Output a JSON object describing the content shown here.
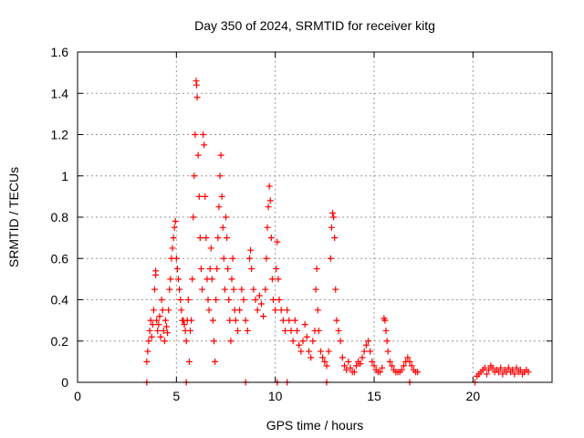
{
  "chart_data": {
    "type": "scatter",
    "title": "Day 350 of 2024, SRMTID for receiver kitg",
    "xlabel": "GPS time / hours",
    "ylabel": "SRMTID / TECUs",
    "xlim": [
      0,
      24
    ],
    "ylim": [
      0,
      1.6
    ],
    "grid": true,
    "marker": "+",
    "color": "#ff0000",
    "x_ticks": [
      0,
      5,
      10,
      15,
      20
    ],
    "x_tick_labels": [
      "0",
      "5",
      "10",
      "15",
      "20"
    ],
    "y_ticks": [
      0,
      0.2,
      0.4,
      0.6,
      0.8,
      1.0,
      1.2,
      1.4,
      1.6
    ],
    "y_tick_labels": [
      "0",
      "0.2",
      "0.4",
      "0.6",
      "0.8",
      "1",
      "1.2",
      "1.4",
      "1.6"
    ],
    "series": [
      {
        "name": "SRMTID",
        "points": [
          [
            3.5,
            0.1
          ],
          [
            3.55,
            0.15
          ],
          [
            3.6,
            0.2
          ],
          [
            3.65,
            0.25
          ],
          [
            3.7,
            0.3
          ],
          [
            3.75,
            0.22
          ],
          [
            3.8,
            0.28
          ],
          [
            3.85,
            0.35
          ],
          [
            3.9,
            0.45
          ],
          [
            3.95,
            0.52
          ],
          [
            3.95,
            0.54
          ],
          [
            4.0,
            0.3
          ],
          [
            4.05,
            0.25
          ],
          [
            4.1,
            0.28
          ],
          [
            4.15,
            0.32
          ],
          [
            4.2,
            0.22
          ],
          [
            4.25,
            0.4
          ],
          [
            4.3,
            0.35
          ],
          [
            4.35,
            0.25
          ],
          [
            4.4,
            0.2
          ],
          [
            4.45,
            0.3
          ],
          [
            4.5,
            0.27
          ],
          [
            4.55,
            0.24
          ],
          [
            4.6,
            0.35
          ],
          [
            4.65,
            0.45
          ],
          [
            4.7,
            0.5
          ],
          [
            4.75,
            0.6
          ],
          [
            4.8,
            0.65
          ],
          [
            4.85,
            0.7
          ],
          [
            4.9,
            0.75
          ],
          [
            4.95,
            0.78
          ],
          [
            5.0,
            0.6
          ],
          [
            5.05,
            0.55
          ],
          [
            5.1,
            0.5
          ],
          [
            5.15,
            0.45
          ],
          [
            5.2,
            0.4
          ],
          [
            5.25,
            0.35
          ],
          [
            5.3,
            0.3
          ],
          [
            5.35,
            0.3
          ],
          [
            5.4,
            0.28
          ],
          [
            5.45,
            0.25
          ],
          [
            5.5,
            0.2
          ],
          [
            5.55,
            0.3
          ],
          [
            5.6,
            0.4
          ],
          [
            5.65,
            0.1
          ],
          [
            5.7,
            0.25
          ],
          [
            5.75,
            0.3
          ],
          [
            5.8,
            0.5
          ],
          [
            5.85,
            0.8
          ],
          [
            5.9,
            1.0
          ],
          [
            5.95,
            1.2
          ],
          [
            6.0,
            1.46
          ],
          [
            6.02,
            1.44
          ],
          [
            6.05,
            1.38
          ],
          [
            6.1,
            1.1
          ],
          [
            6.15,
            0.9
          ],
          [
            6.2,
            0.7
          ],
          [
            6.25,
            0.55
          ],
          [
            6.3,
            0.45
          ],
          [
            6.35,
            1.2
          ],
          [
            6.4,
            1.15
          ],
          [
            6.45,
            0.9
          ],
          [
            6.5,
            0.7
          ],
          [
            6.55,
            0.5
          ],
          [
            6.6,
            0.4
          ],
          [
            6.65,
            0.35
          ],
          [
            6.7,
            0.55
          ],
          [
            6.75,
            0.65
          ],
          [
            6.8,
            0.5
          ],
          [
            6.85,
            0.3
          ],
          [
            6.9,
            0.2
          ],
          [
            6.95,
            0.1
          ],
          [
            7.0,
            0.4
          ],
          [
            7.05,
            0.55
          ],
          [
            7.1,
            0.7
          ],
          [
            7.15,
            0.85
          ],
          [
            7.2,
            1.0
          ],
          [
            7.25,
            1.1
          ],
          [
            7.3,
            0.9
          ],
          [
            7.35,
            0.75
          ],
          [
            7.4,
            0.6
          ],
          [
            7.45,
            0.45
          ],
          [
            7.5,
            0.8
          ],
          [
            7.55,
            0.7
          ],
          [
            7.6,
            0.55
          ],
          [
            7.65,
            0.4
          ],
          [
            7.7,
            0.3
          ],
          [
            7.75,
            0.2
          ],
          [
            7.8,
            0.5
          ],
          [
            7.85,
            0.6
          ],
          [
            7.9,
            0.45
          ],
          [
            7.95,
            0.35
          ],
          [
            8.0,
            0.3
          ],
          [
            8.1,
            0.25
          ],
          [
            8.2,
            0.35
          ],
          [
            8.3,
            0.45
          ],
          [
            8.4,
            0.4
          ],
          [
            8.5,
            0.3
          ],
          [
            8.6,
            0.25
          ],
          [
            8.7,
            0.6
          ],
          [
            8.75,
            0.64
          ],
          [
            8.8,
            0.55
          ],
          [
            8.9,
            0.45
          ],
          [
            9.0,
            0.4
          ],
          [
            9.1,
            0.35
          ],
          [
            9.2,
            0.42
          ],
          [
            9.3,
            0.38
          ],
          [
            9.4,
            0.32
          ],
          [
            9.5,
            0.45
          ],
          [
            9.55,
            0.6
          ],
          [
            9.6,
            0.75
          ],
          [
            9.65,
            0.85
          ],
          [
            9.7,
            0.95
          ],
          [
            9.75,
            0.88
          ],
          [
            9.8,
            0.7
          ],
          [
            9.85,
            0.5
          ],
          [
            9.9,
            0.4
          ],
          [
            10.0,
            0.35
          ],
          [
            10.05,
            0.55
          ],
          [
            10.1,
            0.68
          ],
          [
            10.15,
            0.5
          ],
          [
            10.2,
            0.4
          ],
          [
            10.3,
            0.35
          ],
          [
            10.4,
            0.3
          ],
          [
            10.5,
            0.25
          ],
          [
            10.6,
            0.35
          ],
          [
            10.7,
            0.3
          ],
          [
            10.8,
            0.25
          ],
          [
            10.9,
            0.2
          ],
          [
            11.0,
            0.3
          ],
          [
            11.1,
            0.25
          ],
          [
            11.2,
            0.18
          ],
          [
            11.3,
            0.15
          ],
          [
            11.4,
            0.2
          ],
          [
            11.5,
            0.28
          ],
          [
            11.6,
            0.22
          ],
          [
            11.7,
            0.15
          ],
          [
            11.8,
            0.12
          ],
          [
            11.9,
            0.2
          ],
          [
            12.0,
            0.25
          ],
          [
            12.05,
            0.45
          ],
          [
            12.1,
            0.55
          ],
          [
            12.15,
            0.35
          ],
          [
            12.2,
            0.25
          ],
          [
            12.3,
            0.15
          ],
          [
            12.4,
            0.12
          ],
          [
            12.5,
            0.1
          ],
          [
            12.6,
            0.08
          ],
          [
            12.7,
            0.15
          ],
          [
            12.8,
            0.6
          ],
          [
            12.85,
            0.75
          ],
          [
            12.9,
            0.82
          ],
          [
            12.95,
            0.8
          ],
          [
            13.0,
            0.7
          ],
          [
            13.05,
            0.45
          ],
          [
            13.1,
            0.3
          ],
          [
            13.2,
            0.25
          ],
          [
            13.3,
            0.2
          ],
          [
            13.4,
            0.12
          ],
          [
            13.5,
            0.08
          ],
          [
            13.6,
            0.06
          ],
          [
            13.7,
            0.1
          ],
          [
            13.8,
            0.07
          ],
          [
            13.9,
            0.05
          ],
          [
            14.0,
            0.05
          ],
          [
            14.1,
            0.08
          ],
          [
            14.2,
            0.1
          ],
          [
            14.3,
            0.09
          ],
          [
            14.4,
            0.12
          ],
          [
            14.5,
            0.15
          ],
          [
            14.6,
            0.18
          ],
          [
            14.7,
            0.2
          ],
          [
            14.8,
            0.15
          ],
          [
            14.9,
            0.1
          ],
          [
            15.0,
            0.08
          ],
          [
            15.1,
            0.06
          ],
          [
            15.2,
            0.05
          ],
          [
            15.3,
            0.05
          ],
          [
            15.4,
            0.07
          ],
          [
            15.5,
            0.31
          ],
          [
            15.55,
            0.3
          ],
          [
            15.6,
            0.25
          ],
          [
            15.65,
            0.2
          ],
          [
            15.7,
            0.15
          ],
          [
            15.8,
            0.1
          ],
          [
            15.9,
            0.08
          ],
          [
            16.0,
            0.06
          ],
          [
            16.1,
            0.05
          ],
          [
            16.2,
            0.05
          ],
          [
            16.3,
            0.05
          ],
          [
            16.4,
            0.06
          ],
          [
            16.5,
            0.08
          ],
          [
            16.6,
            0.1
          ],
          [
            16.7,
            0.12
          ],
          [
            16.8,
            0.1
          ],
          [
            16.9,
            0.08
          ],
          [
            17.0,
            0.06
          ],
          [
            17.1,
            0.05
          ],
          [
            17.2,
            0.05
          ],
          [
            20.2,
            0.03
          ],
          [
            20.3,
            0.04
          ],
          [
            20.4,
            0.05
          ],
          [
            20.5,
            0.06
          ],
          [
            20.6,
            0.07
          ],
          [
            20.7,
            0.04
          ],
          [
            20.8,
            0.06
          ],
          [
            20.9,
            0.08
          ],
          [
            21.0,
            0.07
          ],
          [
            21.1,
            0.05
          ],
          [
            21.2,
            0.06
          ],
          [
            21.3,
            0.05
          ],
          [
            21.4,
            0.07
          ],
          [
            21.5,
            0.04
          ],
          [
            21.6,
            0.06
          ],
          [
            21.7,
            0.05
          ],
          [
            21.8,
            0.07
          ],
          [
            21.9,
            0.05
          ],
          [
            22.0,
            0.06
          ],
          [
            22.1,
            0.04
          ],
          [
            22.2,
            0.07
          ],
          [
            22.3,
            0.05
          ],
          [
            22.4,
            0.06
          ],
          [
            22.5,
            0.04
          ],
          [
            22.6,
            0.05
          ],
          [
            22.7,
            0.06
          ],
          [
            22.8,
            0.05
          ],
          [
            3.5,
            0.0
          ],
          [
            5.5,
            0.0
          ],
          [
            8.5,
            0.0
          ],
          [
            10.1,
            0.0
          ],
          [
            10.6,
            0.0
          ],
          [
            12.6,
            0.0
          ],
          [
            16.8,
            0.0
          ],
          [
            20.1,
            0.0
          ]
        ]
      }
    ]
  }
}
